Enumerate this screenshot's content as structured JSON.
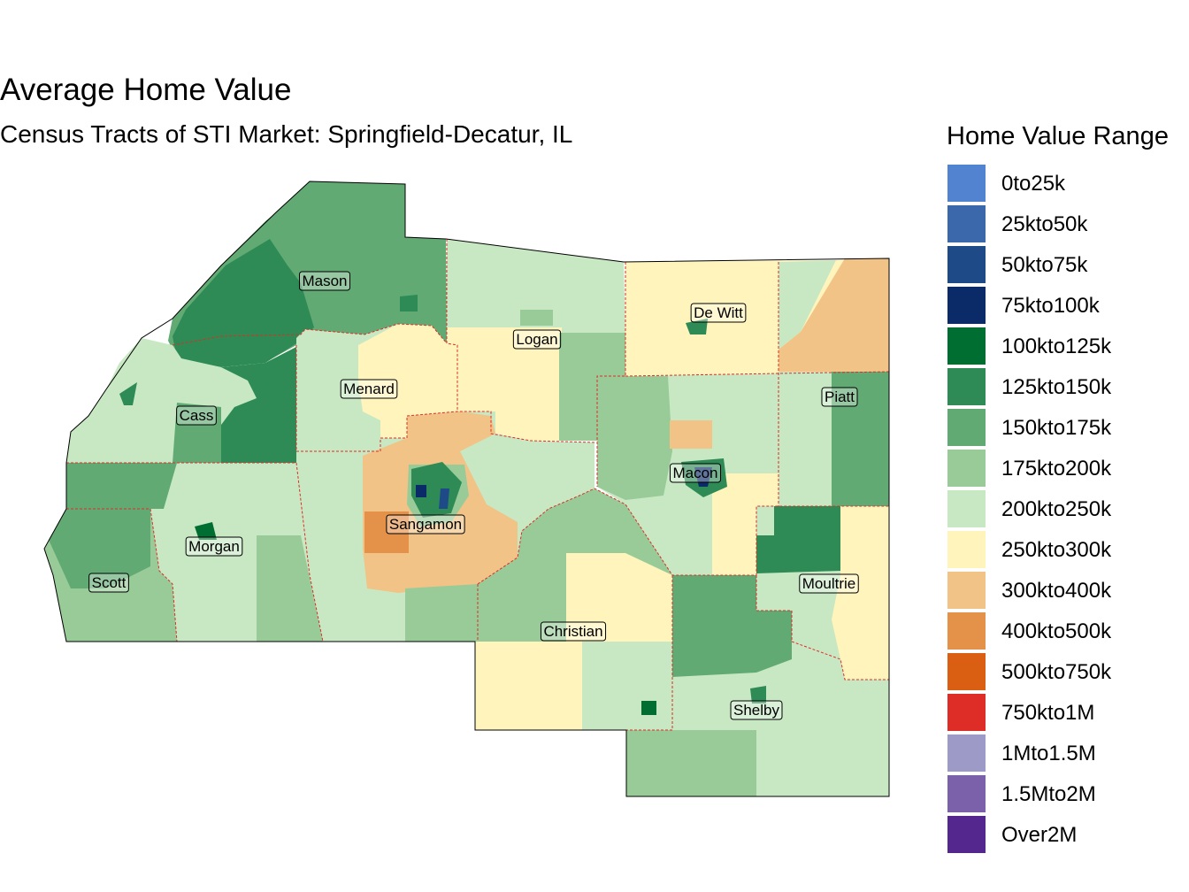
{
  "title": "Average Home Value",
  "subtitle": "Census Tracts of STI Market: Springfield-Decatur, IL",
  "legend": {
    "title": "Home Value Range",
    "items": [
      {
        "label": "0to25k",
        "color": "#5183D0"
      },
      {
        "label": "25kto50k",
        "color": "#3A68AB"
      },
      {
        "label": "50kto75k",
        "color": "#1E4A88"
      },
      {
        "label": "75kto100k",
        "color": "#0B2A68"
      },
      {
        "label": "100kto125k",
        "color": "#006D31"
      },
      {
        "label": "125kto150k",
        "color": "#2E8B55"
      },
      {
        "label": "150kto175k",
        "color": "#62AA74"
      },
      {
        "label": "175kto200k",
        "color": "#98CB98"
      },
      {
        "label": "200kto250k",
        "color": "#C8E8C3"
      },
      {
        "label": "250kto300k",
        "color": "#FFF5BC"
      },
      {
        "label": "300kto400k",
        "color": "#F1C386"
      },
      {
        "label": "400kto500k",
        "color": "#E4914A"
      },
      {
        "label": "500kto750k",
        "color": "#DB5F12"
      },
      {
        "label": "750kto1M",
        "color": "#DE2D26"
      },
      {
        "label": "1Mto1.5M",
        "color": "#9E9AC8"
      },
      {
        "label": "1.5Mto2M",
        "color": "#7B60AA"
      },
      {
        "label": "Over2M",
        "color": "#54278F"
      }
    ]
  },
  "counties": [
    {
      "name": "Mason"
    },
    {
      "name": "Logan"
    },
    {
      "name": "De Witt"
    },
    {
      "name": "Menard"
    },
    {
      "name": "Cass"
    },
    {
      "name": "Piatt"
    },
    {
      "name": "Macon"
    },
    {
      "name": "Sangamon"
    },
    {
      "name": "Morgan"
    },
    {
      "name": "Scott"
    },
    {
      "name": "Moultrie"
    },
    {
      "name": "Christian"
    },
    {
      "name": "Shelby"
    }
  ]
}
